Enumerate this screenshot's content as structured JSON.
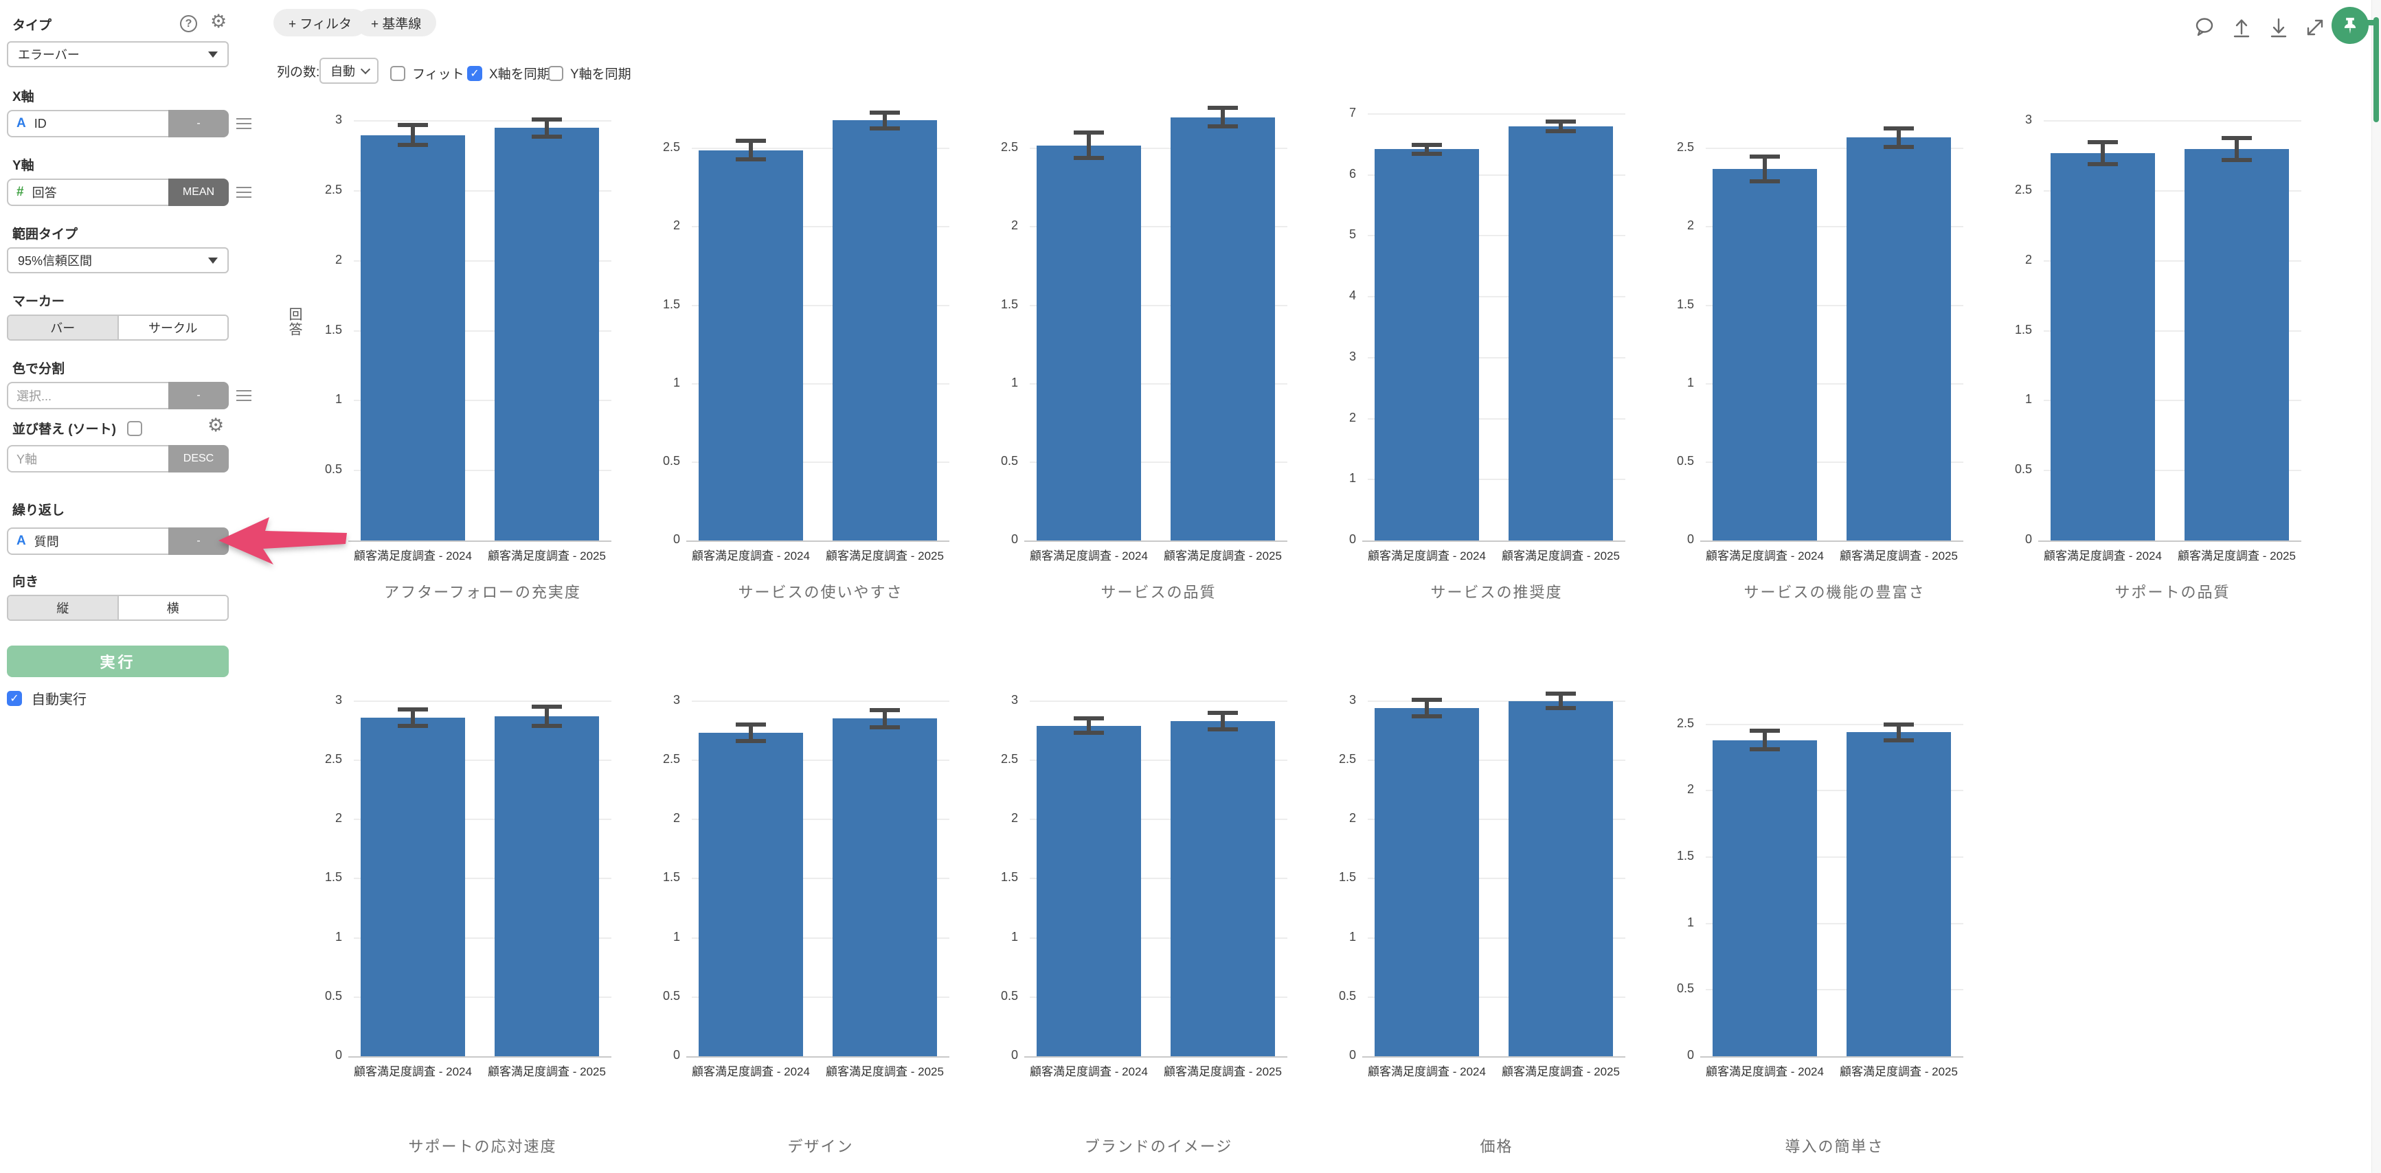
{
  "sidebar": {
    "type_label": "タイプ",
    "type_value": "エラーバー",
    "x_axis": {
      "label": "X軸",
      "field_type": "A",
      "field": "ID",
      "aggregation": "-"
    },
    "y_axis": {
      "label": "Y軸",
      "field_type": "#",
      "field": "回答",
      "aggregation": "MEAN"
    },
    "range_label": "範囲タイプ",
    "range_value": "95%信頼区間",
    "marker_label": "マーカー",
    "marker_options": [
      "バー",
      "サークル"
    ],
    "marker_selected": "バー",
    "color_label": "色で分割",
    "color_placeholder": "選択...",
    "color_aggregation": "-",
    "sort_label": "並び替え (ソート)",
    "sort_checked": false,
    "sort_placeholder": "Y軸",
    "sort_aggregation": "DESC",
    "repeat_label": "繰り返し",
    "repeat_field": {
      "field_type": "A",
      "field": "質問",
      "aggregation": "-"
    },
    "orientation_label": "向き",
    "orientation_options": [
      "縦",
      "横"
    ],
    "orientation_selected": "縦",
    "run_label": "実行",
    "autorun_label": "自動実行",
    "autorun_checked": true
  },
  "toolbar": {
    "filter_button": "+ フィルタ",
    "baseline_button": "+ 基準線",
    "columns_label": "列の数:",
    "columns_value": "自動",
    "fit_label": "フィット",
    "fit_checked": false,
    "sync_x_label": "X軸を同期",
    "sync_x_checked": true,
    "sync_y_label": "Y軸を同期",
    "sync_y_checked": false
  },
  "header_icons": [
    "comment-icon",
    "upload-icon",
    "download-icon",
    "expand-icon",
    "pin-icon"
  ],
  "annotation": {
    "type": "arrow",
    "color": "#E8476F"
  },
  "colors": {
    "bar": "#3E76B0",
    "error_bar": "#4A4A4A",
    "arrow": "#E8476F",
    "pin_button": "#43A370",
    "checkbox": "#3B7CF6",
    "run_button": "#8FCBA4"
  },
  "chart_data": {
    "type": "bar",
    "subtype": "error-bar",
    "ylabel": "回答",
    "grid": true,
    "legend": "none",
    "categories": [
      "顧客満足度調査 - 2024",
      "顧客満足度調査 - 2025"
    ],
    "charts": [
      {
        "title": "アフターフォローの充実度",
        "row": 0,
        "col": 0,
        "ylim": [
          0,
          3.05
        ],
        "ticks": [
          0,
          0.5,
          1,
          1.5,
          2,
          2.5,
          3
        ],
        "values": [
          2.9,
          2.95
        ],
        "errors": [
          0.07,
          0.06
        ]
      },
      {
        "title": "サービスの使いやすさ",
        "row": 0,
        "col": 1,
        "ylim": [
          0,
          2.72
        ],
        "ticks": [
          0,
          0.5,
          1,
          1.5,
          2,
          2.5
        ],
        "values": [
          2.49,
          2.68
        ],
        "errors": [
          0.06,
          0.05
        ]
      },
      {
        "title": "サービスの品質",
        "row": 0,
        "col": 2,
        "ylim": [
          0,
          2.72
        ],
        "ticks": [
          0,
          0.5,
          1,
          1.5,
          2,
          2.5
        ],
        "values": [
          2.52,
          2.7
        ],
        "errors": [
          0.08,
          0.06
        ]
      },
      {
        "title": "サービスの推奨度",
        "row": 0,
        "col": 3,
        "ylim": [
          0,
          7.0
        ],
        "ticks": [
          0,
          1,
          2,
          3,
          4,
          5,
          6,
          7
        ],
        "values": [
          6.42,
          6.8
        ],
        "errors": [
          0.07,
          0.08
        ]
      },
      {
        "title": "サービスの機能の豊富さ",
        "row": 0,
        "col": 4,
        "ylim": [
          0,
          2.72
        ],
        "ticks": [
          0,
          0.5,
          1,
          1.5,
          2,
          2.5
        ],
        "values": [
          2.37,
          2.57
        ],
        "errors": [
          0.08,
          0.06
        ]
      },
      {
        "title": "サポートの品質",
        "row": 0,
        "col": 5,
        "ylim": [
          0,
          3.05
        ],
        "ticks": [
          0,
          0.5,
          1,
          1.5,
          2,
          2.5,
          3
        ],
        "values": [
          2.77,
          2.8
        ],
        "errors": [
          0.08,
          0.08
        ]
      },
      {
        "title": "サポートの応対速度",
        "row": 1,
        "col": 0,
        "ylim": [
          0,
          3.05
        ],
        "ticks": [
          0,
          0.5,
          1,
          1.5,
          2,
          2.5,
          3
        ],
        "values": [
          2.86,
          2.87
        ],
        "errors": [
          0.07,
          0.08
        ]
      },
      {
        "title": "デザイン",
        "row": 1,
        "col": 1,
        "ylim": [
          0,
          3.05
        ],
        "ticks": [
          0,
          0.5,
          1,
          1.5,
          2,
          2.5,
          3
        ],
        "values": [
          2.73,
          2.85
        ],
        "errors": [
          0.07,
          0.07
        ]
      },
      {
        "title": "ブランドのイメージ",
        "row": 1,
        "col": 2,
        "ylim": [
          0,
          3.05
        ],
        "ticks": [
          0,
          0.5,
          1,
          1.5,
          2,
          2.5,
          3
        ],
        "values": [
          2.79,
          2.83
        ],
        "errors": [
          0.06,
          0.07
        ]
      },
      {
        "title": "価格",
        "row": 1,
        "col": 3,
        "ylim": [
          0,
          3.05
        ],
        "ticks": [
          0,
          0.5,
          1,
          1.5,
          2,
          2.5,
          3
        ],
        "values": [
          2.94,
          3.0
        ],
        "errors": [
          0.07,
          0.06
        ]
      },
      {
        "title": "導入の簡単さ",
        "row": 1,
        "col": 4,
        "ylim": [
          0,
          2.72
        ],
        "ticks": [
          0,
          0.5,
          1,
          1.5,
          2,
          2.5
        ],
        "values": [
          2.38,
          2.44
        ],
        "errors": [
          0.07,
          0.06
        ]
      }
    ]
  }
}
